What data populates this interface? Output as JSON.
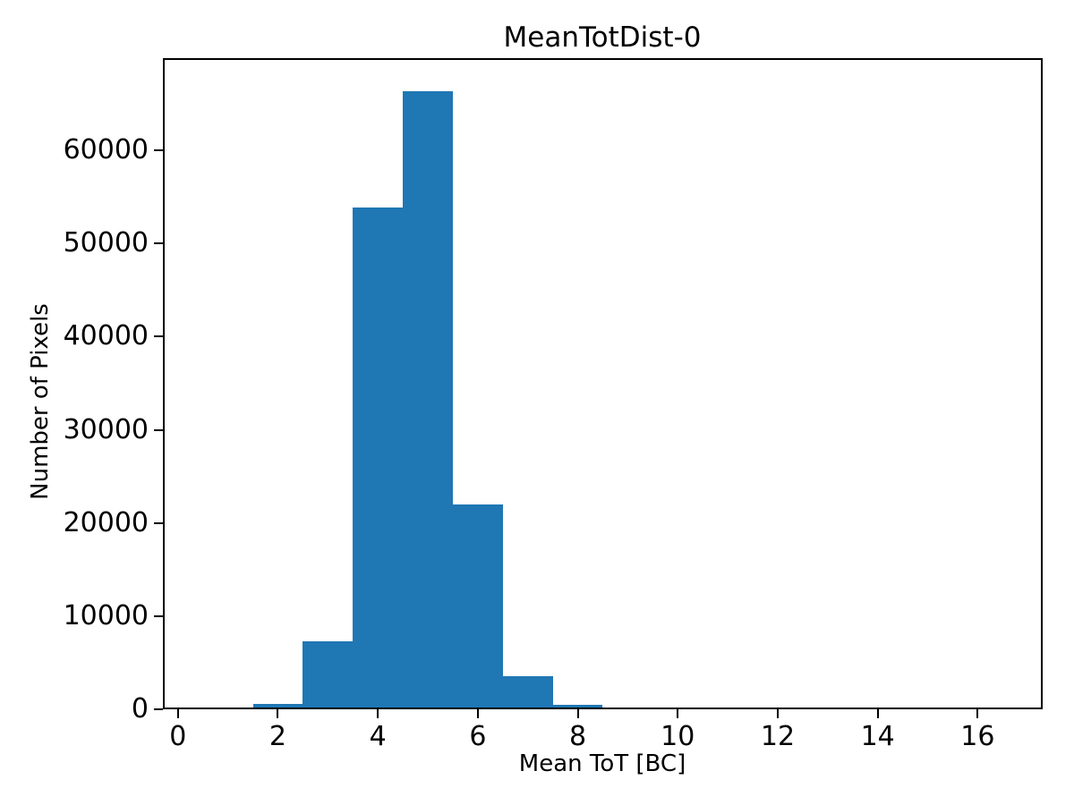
{
  "figure": {
    "background_color": "#ffffff",
    "axes_edge_color": "#000000",
    "tick_color": "#000000"
  },
  "chart_data": {
    "type": "bar",
    "subtype": "histogram",
    "title": "MeanTotDist-0",
    "xlabel": "Mean ToT [BC]",
    "ylabel": "Number of Pixels",
    "bar_color": "#1f77b4",
    "bin_edges": [
      0.5,
      1.5,
      2.5,
      3.5,
      4.5,
      5.5,
      6.5,
      7.5,
      8.5,
      9.5,
      10.5,
      11.5,
      12.5,
      13.5,
      14.5,
      15.5,
      16.5
    ],
    "counts": [
      0,
      580,
      7300,
      53900,
      66300,
      22000,
      3550,
      480,
      190,
      0,
      0,
      0,
      0,
      0,
      0,
      0
    ],
    "xticks": [
      0,
      2,
      4,
      6,
      8,
      10,
      12,
      14,
      16
    ],
    "yticks": [
      0,
      10000,
      20000,
      30000,
      40000,
      50000,
      60000
    ],
    "xlim": [
      -0.3,
      17.3
    ],
    "ylim": [
      0,
      69900
    ],
    "grid": false,
    "legend": null
  }
}
